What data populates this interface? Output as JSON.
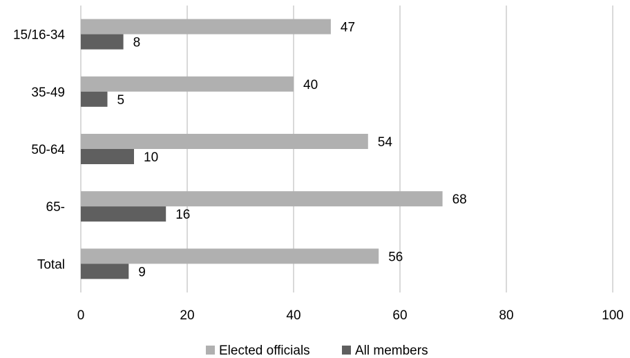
{
  "chart_data": {
    "type": "bar",
    "orientation": "horizontal",
    "categories": [
      "15/16-34",
      "35-49",
      "50-64",
      "65-",
      "Total"
    ],
    "series": [
      {
        "name": "Elected officials",
        "values": [
          47,
          40,
          54,
          68,
          56
        ],
        "color": "#b0b0b0"
      },
      {
        "name": "All members",
        "values": [
          8,
          5,
          10,
          16,
          9
        ],
        "color": "#5f5f5f"
      }
    ],
    "xlim": [
      0,
      100
    ],
    "xticks": [
      0,
      20,
      40,
      60,
      80,
      100
    ],
    "grid": true,
    "legend_position": "bottom"
  }
}
